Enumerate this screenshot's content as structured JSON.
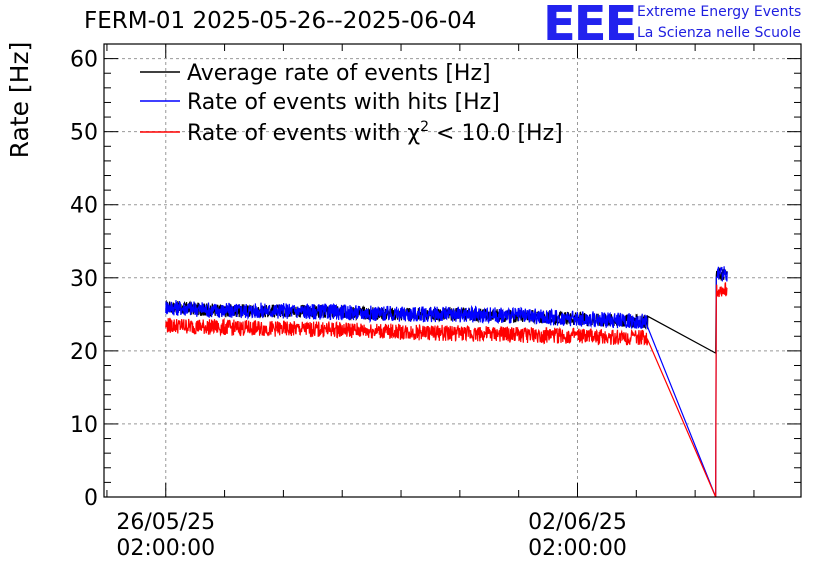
{
  "title": "FERM-01 2025-05-26--2025-06-04",
  "logo": {
    "mark": "EEE",
    "line1": "Extreme Energy Events",
    "line2": "La Scienza nelle Scuole",
    "color": "#1f1fe0"
  },
  "chart_data": {
    "type": "line",
    "ylabel": "Rate [Hz]",
    "ylim": [
      0,
      62
    ],
    "y_ticks": [
      0,
      10,
      20,
      30,
      40,
      50,
      60
    ],
    "x_ticks": [
      {
        "day": 0,
        "line1": "26/05/25",
        "line2": "02:00:00"
      },
      {
        "day": 7,
        "line1": "02/06/25",
        "line2": "02:00:00"
      }
    ],
    "xlim_days": [
      -1.05,
      10.8
    ],
    "grid": true,
    "legend_position": "top-left",
    "series": [
      {
        "name": "Average rate of events [Hz]",
        "color": "#000000",
        "x_days": [
          0,
          1,
          2,
          3,
          4,
          5,
          6,
          7,
          8.2,
          9.35,
          9.36,
          9.55
        ],
        "values": [
          26.0,
          25.5,
          25.5,
          25.3,
          25.0,
          25.0,
          24.8,
          24.4,
          24.0,
          19.7,
          30.5,
          30.5
        ],
        "noise": 0.9
      },
      {
        "name": "Rate of events with hits [Hz]",
        "color": "#0000ff",
        "x_days": [
          0,
          1,
          2,
          3,
          4,
          5,
          6,
          7,
          8.2,
          9.35,
          9.36,
          9.55
        ],
        "values": [
          26.0,
          25.5,
          25.5,
          25.3,
          25.0,
          25.0,
          24.8,
          24.4,
          24.0,
          0.0,
          30.5,
          30.5
        ],
        "noise": 1.1
      },
      {
        "name": "Rate of events with χ² < 10.0 [Hz]",
        "name_base": "Rate of events with ",
        "name_chi": "χ",
        "name_sup": "2",
        "name_rest": " < 10.0 [Hz]",
        "color": "#ff0000",
        "x_days": [
          0,
          1,
          2,
          3,
          4,
          5,
          6,
          7,
          8.2,
          9.35,
          9.36,
          9.55
        ],
        "values": [
          23.5,
          23.2,
          23.0,
          22.9,
          22.6,
          22.4,
          22.2,
          22.0,
          21.8,
          0.0,
          28.3,
          28.3
        ],
        "noise": 1.1
      }
    ]
  }
}
